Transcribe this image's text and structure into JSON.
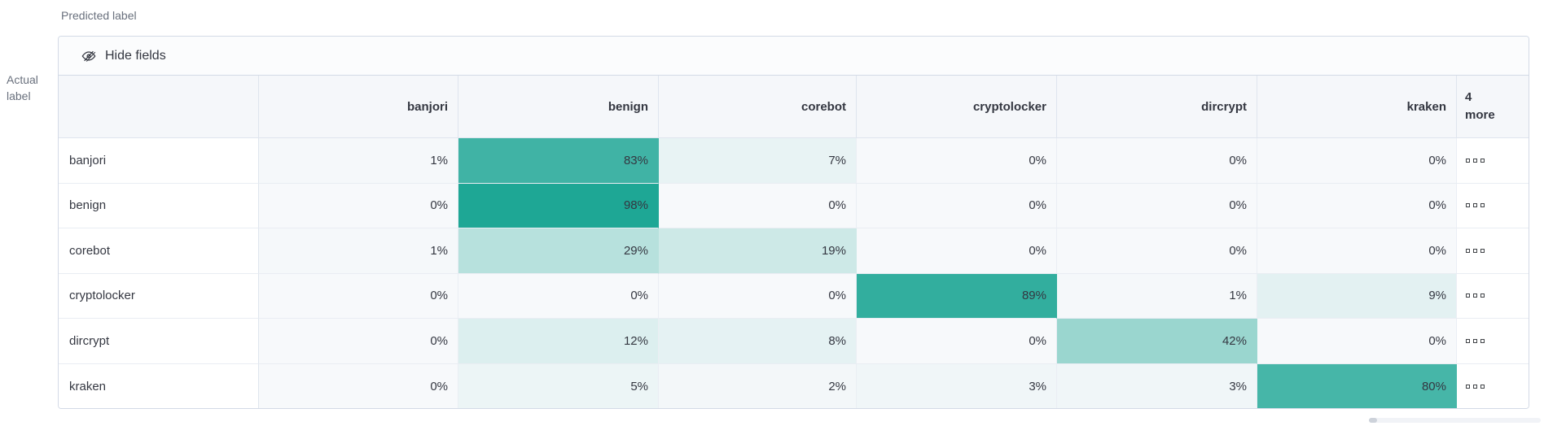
{
  "axis": {
    "predicted_label": "Predicted label",
    "actual_label_line1": "Actual",
    "actual_label_line2": "label"
  },
  "toolbar": {
    "hide_fields_label": "Hide fields",
    "hide_fields_icon": "eye-slash-icon"
  },
  "matrix": {
    "columns": [
      "banjori",
      "benign",
      "corebot",
      "cryptolocker",
      "dircrypt",
      "kraken"
    ],
    "more_column": {
      "line1": "4",
      "line2": "more",
      "ellipsis_icon": "boxes-horizontal-icon"
    },
    "rows": [
      {
        "label": "banjori",
        "values": [
          1,
          83,
          7,
          0,
          0,
          0
        ]
      },
      {
        "label": "benign",
        "values": [
          0,
          98,
          0,
          0,
          0,
          0
        ]
      },
      {
        "label": "corebot",
        "values": [
          1,
          29,
          19,
          0,
          0,
          0
        ]
      },
      {
        "label": "cryptolocker",
        "values": [
          0,
          0,
          0,
          89,
          1,
          9
        ]
      },
      {
        "label": "dircrypt",
        "values": [
          0,
          12,
          8,
          0,
          42,
          0
        ]
      },
      {
        "label": "kraken",
        "values": [
          0,
          5,
          2,
          3,
          3,
          80
        ]
      }
    ],
    "value_suffix": "%"
  },
  "colors": {
    "heatmap_base": "#1AA593",
    "zero_cell_bg": "#F7F9FB",
    "header_bg": "#F5F7FA",
    "panel_border": "#D3DAE6",
    "text": "#343741",
    "muted_text": "#69707D"
  }
}
